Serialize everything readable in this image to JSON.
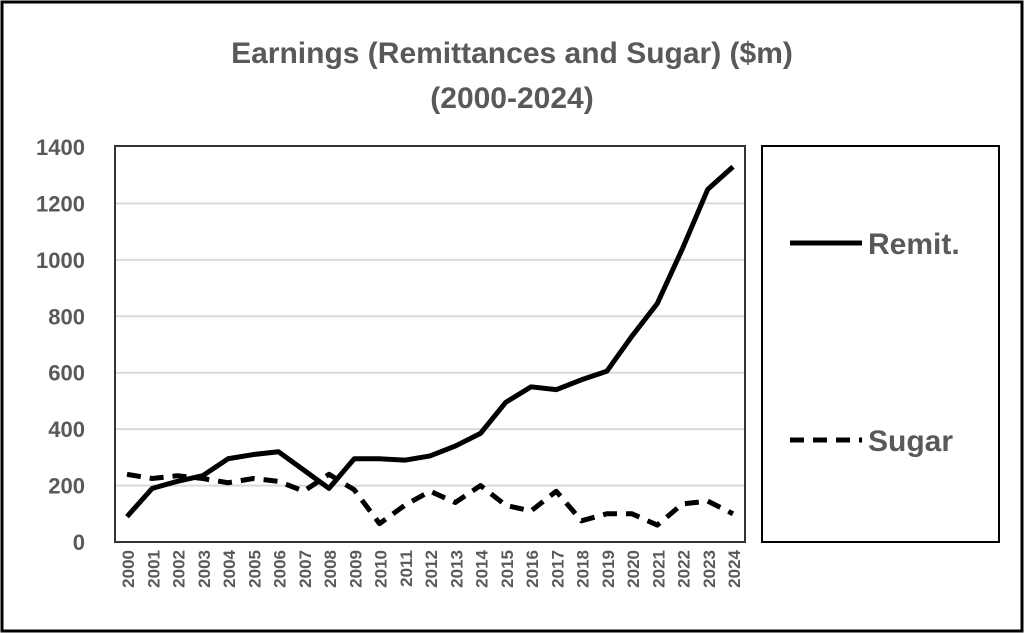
{
  "chart_data": {
    "type": "line",
    "title": "Earnings (Remittances and Sugar) ($m)",
    "subtitle": "(2000-2024)",
    "xlabel": "",
    "ylabel": "",
    "ylim": [
      0,
      1400
    ],
    "yticks": [
      "0",
      "200",
      "400",
      "600",
      "800",
      "1000",
      "1200",
      "1400"
    ],
    "x": [
      "2000",
      "2001",
      "2002",
      "2003",
      "2004",
      "2005",
      "2006",
      "2007",
      "2008",
      "2009",
      "2010",
      "2011",
      "2012",
      "2013",
      "2014",
      "2015",
      "2016",
      "2017",
      "2018",
      "2019",
      "2020",
      "2021",
      "2022",
      "2023",
      "2024"
    ],
    "grid": true,
    "legend_position": "right",
    "series": [
      {
        "name": "Remit.",
        "style": "solid",
        "color": "#000000",
        "values": [
          90,
          190,
          215,
          235,
          295,
          310,
          320,
          255,
          190,
          295,
          295,
          290,
          305,
          340,
          385,
          495,
          550,
          540,
          575,
          605,
          730,
          845,
          1040,
          1250,
          1330
        ]
      },
      {
        "name": "Sugar",
        "style": "dashed",
        "color": "#000000",
        "values": [
          240,
          225,
          235,
          225,
          210,
          225,
          215,
          180,
          240,
          185,
          65,
          130,
          180,
          140,
          200,
          130,
          110,
          180,
          75,
          100,
          100,
          60,
          135,
          145,
          100
        ]
      }
    ]
  }
}
